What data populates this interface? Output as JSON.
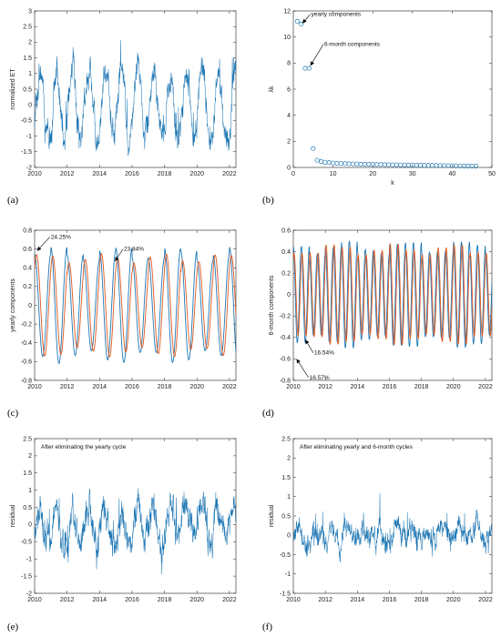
{
  "colors": {
    "blue": "#1f77b4",
    "orange": "#e2571e",
    "axis": "#222222"
  },
  "chart_data": [
    {
      "id": "a",
      "panel_label": "(a)",
      "type": "line",
      "title": "",
      "xlabel": "",
      "ylabel": "normalized ET",
      "xlim": [
        2010,
        2022.4
      ],
      "ylim": [
        -2,
        3
      ],
      "xticks": [
        2010,
        2012,
        2014,
        2016,
        2018,
        2020,
        2022
      ],
      "yticks": [
        -2,
        -1.5,
        -1,
        -0.5,
        0,
        0.5,
        1,
        1.5,
        2,
        2.5,
        3
      ],
      "series": [
        {
          "color": "#1f77b4",
          "generator": {
            "kind": "noisy-seasonal",
            "amp": 1.1,
            "noise": 0.45,
            "seed": 3
          }
        }
      ],
      "annotations": []
    },
    {
      "id": "b",
      "panel_label": "(b)",
      "type": "scatter",
      "title": "",
      "xlabel": "k",
      "ylabel": "λk",
      "xlim": [
        0,
        50
      ],
      "ylim": [
        0,
        12
      ],
      "xticks": [
        0,
        10,
        20,
        30,
        40,
        50
      ],
      "yticks": [
        0,
        2,
        4,
        6,
        8,
        10,
        12
      ],
      "series": [
        {
          "color": "#1f77b4",
          "marker": "circle",
          "x": [
            1,
            2,
            3,
            4,
            5,
            6,
            7,
            8,
            9,
            10,
            11,
            12,
            13,
            14,
            15,
            16,
            17,
            18,
            19,
            20,
            21,
            22,
            23,
            24,
            25,
            26,
            27,
            28,
            29,
            30,
            31,
            32,
            33,
            34,
            35,
            36,
            37,
            38,
            39,
            40,
            41,
            42,
            43,
            44,
            45,
            46
          ],
          "y": [
            11.2,
            11.0,
            7.6,
            7.6,
            1.45,
            0.55,
            0.45,
            0.4,
            0.37,
            0.34,
            0.32,
            0.3,
            0.29,
            0.28,
            0.27,
            0.26,
            0.25,
            0.24,
            0.24,
            0.23,
            0.22,
            0.22,
            0.21,
            0.21,
            0.2,
            0.2,
            0.19,
            0.19,
            0.18,
            0.18,
            0.17,
            0.17,
            0.16,
            0.16,
            0.15,
            0.15,
            0.14,
            0.14,
            0.13,
            0.13,
            0.12,
            0.12,
            0.11,
            0.11,
            0.1,
            0.1
          ]
        }
      ],
      "annotations": [
        {
          "text": "yearly components",
          "x": 4.5,
          "y": 11.6,
          "arrow_to": [
            2.3,
            11.05
          ]
        },
        {
          "text": "6-month components",
          "x": 7.8,
          "y": 9.3,
          "arrow_to": [
            4.3,
            7.8
          ]
        }
      ]
    },
    {
      "id": "c",
      "panel_label": "(c)",
      "type": "line",
      "title": "",
      "xlabel": "",
      "ylabel": "yearly components",
      "xlim": [
        2010,
        2022.4
      ],
      "ylim": [
        -0.8,
        0.8
      ],
      "xticks": [
        2010,
        2012,
        2014,
        2016,
        2018,
        2020,
        2022
      ],
      "yticks": [
        -0.8,
        -0.6,
        -0.4,
        -0.2,
        0,
        0.2,
        0.4,
        0.6,
        0.8
      ],
      "series": [
        {
          "color": "#1f77b4",
          "generator": {
            "kind": "sine",
            "period": 1,
            "phase": 0.0,
            "amp": 0.55,
            "ampVar": 0.07,
            "seed": 1
          }
        },
        {
          "color": "#e2571e",
          "generator": {
            "kind": "sine",
            "period": 1,
            "phase": 0.12,
            "amp": 0.5,
            "ampVar": 0.05,
            "seed": 2
          }
        }
      ],
      "annotations": [
        {
          "text": "24.25%",
          "x": 2011.0,
          "y": 0.71,
          "arrow_to": [
            2010.15,
            0.58
          ]
        },
        {
          "text": "23.84%",
          "x": 2015.5,
          "y": 0.58,
          "arrow_to": [
            2014.95,
            0.47
          ]
        }
      ]
    },
    {
      "id": "d",
      "panel_label": "(d)",
      "type": "line",
      "title": "",
      "xlabel": "",
      "ylabel": "6-month components",
      "xlim": [
        2010,
        2022.4
      ],
      "ylim": [
        -0.8,
        0.6
      ],
      "xticks": [
        2010,
        2012,
        2014,
        2016,
        2018,
        2020,
        2022
      ],
      "yticks": [
        -0.8,
        -0.6,
        -0.4,
        -0.2,
        0,
        0.2,
        0.4,
        0.6
      ],
      "series": [
        {
          "color": "#1f77b4",
          "generator": {
            "kind": "sine",
            "period": 0.5,
            "phase": 0.0,
            "amp": 0.44,
            "ampVar": 0.06,
            "seed": 4
          }
        },
        {
          "color": "#e2571e",
          "generator": {
            "kind": "sine",
            "period": 0.5,
            "phase": 0.05,
            "amp": 0.42,
            "ampVar": 0.05,
            "seed": 5
          }
        }
      ],
      "annotations": [
        {
          "text": "16.54%",
          "x": 2011.3,
          "y": -0.56,
          "arrow_to": [
            2010.75,
            -0.42
          ]
        },
        {
          "text": "16.57%",
          "x": 2011.0,
          "y": -0.79,
          "arrow_to": [
            2010.2,
            -0.6
          ]
        }
      ]
    },
    {
      "id": "e",
      "panel_label": "(e)",
      "type": "line",
      "title": "After eliminating the yearly cycle",
      "xlabel": "",
      "ylabel": "residual",
      "xlim": [
        2010,
        2022.4
      ],
      "ylim": [
        -2,
        2.5
      ],
      "xticks": [
        2010,
        2012,
        2014,
        2016,
        2018,
        2020,
        2022
      ],
      "yticks": [
        -2,
        -1.5,
        -1,
        -0.5,
        0,
        0.5,
        1,
        1.5,
        2,
        2.5
      ],
      "series": [
        {
          "color": "#1f77b4",
          "generator": {
            "kind": "noisy-seasonal",
            "amp": 0.5,
            "noise": 0.45,
            "seed": 7
          }
        }
      ],
      "annotations": []
    },
    {
      "id": "f",
      "panel_label": "(f)",
      "type": "line",
      "title": "After eliminating yearly and 6-month cycles",
      "xlabel": "",
      "ylabel": "residual",
      "xlim": [
        2010,
        2022.4
      ],
      "ylim": [
        -1.5,
        2.5
      ],
      "xticks": [
        2010,
        2012,
        2014,
        2016,
        2018,
        2020,
        2022
      ],
      "yticks": [
        -1.5,
        -1,
        -0.5,
        0,
        0.5,
        1,
        1.5,
        2,
        2.5
      ],
      "series": [
        {
          "color": "#1f77b4",
          "generator": {
            "kind": "noisy-seasonal",
            "amp": 0.15,
            "noise": 0.3,
            "seed": 11
          }
        }
      ],
      "annotations": []
    }
  ]
}
